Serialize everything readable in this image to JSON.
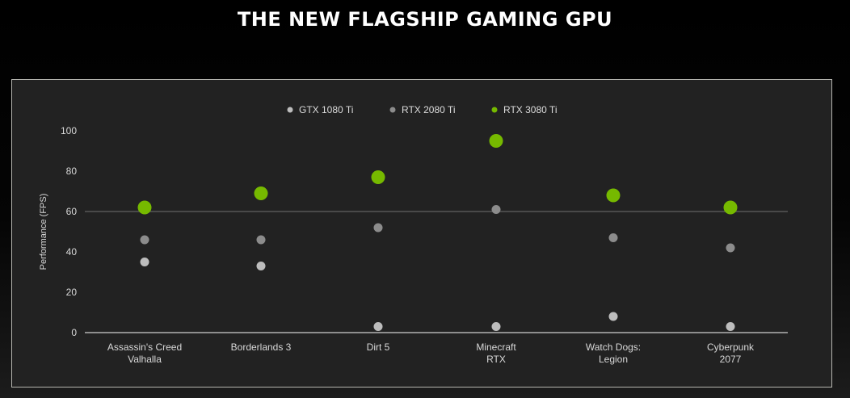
{
  "page": {
    "title": "THE NEW FLAGSHIP GAMING GPU"
  },
  "chart_data": {
    "type": "scatter",
    "title": "THE NEW FLAGSHIP GAMING GPU",
    "xlabel": "",
    "ylabel": "Performance (FPS)",
    "ylim": [
      0,
      100
    ],
    "yticks": [
      "0",
      "20",
      "40",
      "60",
      "80",
      "100"
    ],
    "reference_line": 60,
    "grid": false,
    "legend_position": "top-center",
    "categories": [
      [
        "Assassin's Creed",
        "Valhalla"
      ],
      [
        "Borderlands 3"
      ],
      [
        "Dirt 5"
      ],
      [
        "Minecraft",
        "RTX"
      ],
      [
        "Watch Dogs:",
        "Legion"
      ],
      [
        "Cyberpunk",
        "2077"
      ]
    ],
    "series": [
      {
        "name": "GTX 1080 Ti",
        "color": "#bdbdbd",
        "values": [
          35,
          33,
          3,
          3,
          8,
          3
        ]
      },
      {
        "name": "RTX 2080 Ti",
        "color": "#8c8c8c",
        "values": [
          46,
          46,
          52,
          61,
          47,
          42
        ]
      },
      {
        "name": "RTX 3080 Ti",
        "color": "#76b900",
        "values": [
          62,
          69,
          77,
          95,
          68,
          62
        ]
      }
    ]
  }
}
